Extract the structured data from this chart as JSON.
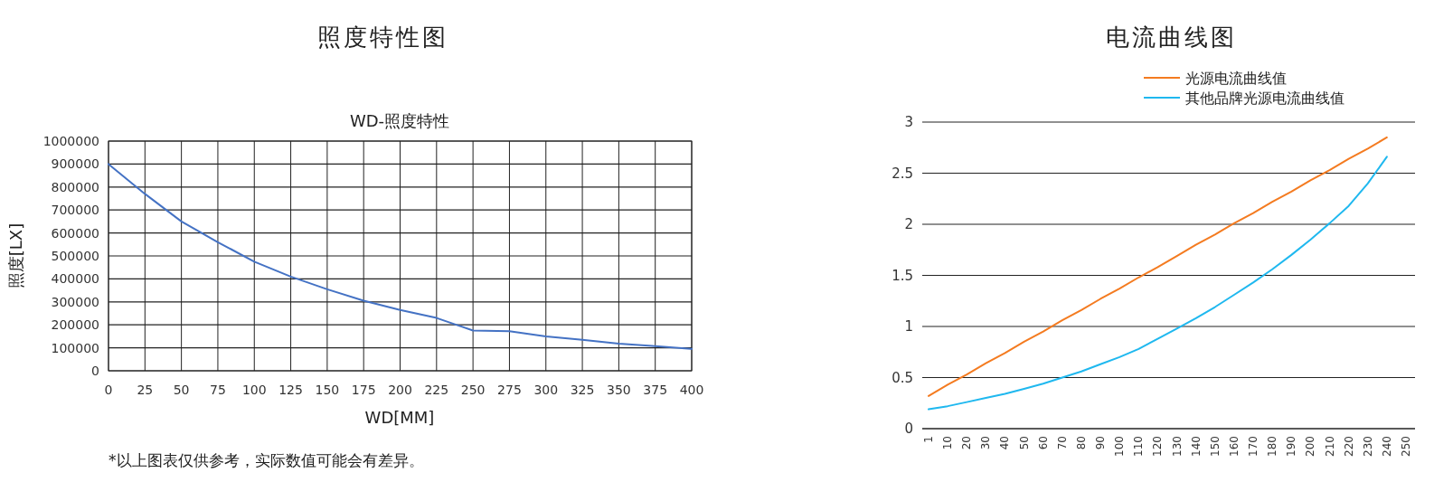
{
  "chart_data": [
    {
      "type": "line",
      "title": "照度特性图",
      "subtitle": "WD-照度特性",
      "xlabel": "WD[MM]",
      "ylabel": "照度[LX]",
      "annotations": [
        "*以上图表仅供参考，实际数值可能会有差异。"
      ],
      "x": [
        0,
        25,
        50,
        75,
        100,
        125,
        150,
        175,
        200,
        225,
        250,
        275,
        300,
        325,
        350,
        375,
        400
      ],
      "series": [
        {
          "color": "#4472c4",
          "values": [
            900000,
            770000,
            650000,
            560000,
            475000,
            410000,
            355000,
            305000,
            265000,
            230000,
            175000,
            172000,
            150000,
            135000,
            118000,
            107000,
            95000
          ]
        }
      ],
      "xlim": [
        0,
        400
      ],
      "xticks": [
        0,
        25,
        50,
        75,
        100,
        125,
        150,
        175,
        200,
        225,
        250,
        275,
        300,
        325,
        350,
        375,
        400
      ],
      "ylim": [
        0,
        1000000
      ],
      "yticks": [
        0,
        100000,
        200000,
        300000,
        400000,
        500000,
        600000,
        700000,
        800000,
        900000,
        1000000
      ],
      "grid": true
    },
    {
      "type": "line",
      "title": "电流曲线图",
      "legend": "top right",
      "grid": "y",
      "categories": [
        "1",
        "10",
        "20",
        "30",
        "40",
        "50",
        "60",
        "70",
        "80",
        "90",
        "100",
        "110",
        "120",
        "130",
        "140",
        "150",
        "160",
        "170",
        "180",
        "190",
        "200",
        "210",
        "220",
        "230",
        "240",
        "250"
      ],
      "series": [
        {
          "name": "光源电流曲线值",
          "color": "#f47b20",
          "values": [
            0.32,
            0.43,
            0.53,
            0.64,
            0.74,
            0.85,
            0.95,
            1.06,
            1.16,
            1.27,
            1.37,
            1.48,
            1.58,
            1.69,
            1.8,
            1.9,
            2.01,
            2.11,
            2.22,
            2.32,
            2.43,
            2.53,
            2.64,
            2.74,
            2.85,
            null
          ]
        },
        {
          "name": "其他品牌光源电流曲线值",
          "color": "#1fb8ef",
          "values": [
            0.19,
            0.22,
            0.26,
            0.3,
            0.34,
            0.39,
            0.44,
            0.5,
            0.56,
            0.63,
            0.7,
            0.78,
            0.88,
            0.98,
            1.08,
            1.19,
            1.31,
            1.43,
            1.56,
            1.7,
            1.85,
            2.01,
            2.18,
            2.4,
            2.66,
            null
          ]
        }
      ],
      "ylim": [
        0,
        3
      ],
      "yticks": [
        0,
        0.5,
        1,
        1.5,
        2,
        2.5,
        3
      ]
    }
  ]
}
